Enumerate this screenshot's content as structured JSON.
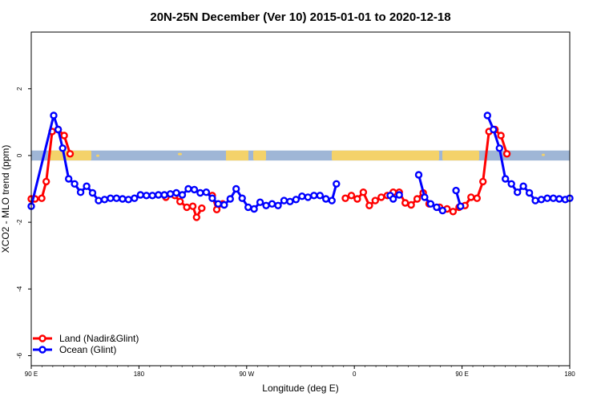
{
  "chart_data": {
    "type": "line",
    "title": "20N-25N December (Ver 10)   2015-01-01 to 2020-12-18",
    "xlabel": "Longitude (deg E)",
    "ylabel": "XCO2 - MLO trend (ppm)",
    "xlim": [
      90,
      450
    ],
    "ylim": [
      -6.3,
      3.7
    ],
    "x_ticks": [
      {
        "value": 90,
        "label": "90 E"
      },
      {
        "value": 162,
        "label": "180"
      },
      {
        "value": 234,
        "label": "90 W"
      },
      {
        "value": 306,
        "label": "0"
      },
      {
        "value": 378,
        "label": "90 E"
      },
      {
        "value": 450,
        "label": "180"
      }
    ],
    "y_ticks": [
      {
        "value": 2,
        "label": "2"
      },
      {
        "value": 0,
        "label": "0"
      },
      {
        "value": -2,
        "label": "-2"
      },
      {
        "value": -4,
        "label": "-4"
      },
      {
        "value": -6,
        "label": "-6"
      }
    ],
    "band": {
      "ymin": -0.15,
      "ymax": 0.15,
      "ocean_color": "#9fb6d6",
      "land_color": "#f4d26a"
    },
    "legend": {
      "placement": "bottom-left"
    },
    "series": [
      {
        "name": "Land (Nadir&Glint)",
        "color": "#ff0000",
        "segments": [
          [
            [
              90,
              -1.3
            ],
            [
              92.5,
              -1.3
            ],
            [
              97,
              -1.28
            ],
            [
              100,
              -0.78
            ],
            [
              104,
              0.72
            ],
            [
              108,
              0.78
            ],
            [
              112,
              0.6
            ],
            [
              116,
              0.05
            ]
          ],
          [
            [
              180,
              -1.25
            ],
            [
              186,
              -1.2
            ],
            [
              189.5,
              -1.38
            ],
            [
              194,
              -1.55
            ],
            [
              198,
              -1.52
            ],
            [
              200.5,
              -1.85
            ],
            [
              204,
              -1.58
            ]
          ],
          [
            [
              211,
              -1.2
            ],
            [
              214,
              -1.62
            ],
            [
              218,
              -1.45
            ]
          ],
          [
            [
              300,
              -1.28
            ],
            [
              304,
              -1.2
            ],
            [
              308,
              -1.3
            ],
            [
              312,
              -1.1
            ],
            [
              316,
              -1.5
            ],
            [
              320,
              -1.35
            ],
            [
              324,
              -1.25
            ],
            [
              328,
              -1.2
            ],
            [
              332,
              -1.1
            ],
            [
              336,
              -1.1
            ],
            [
              340,
              -1.42
            ],
            [
              344,
              -1.48
            ],
            [
              348,
              -1.3
            ],
            [
              352,
              -1.12
            ],
            [
              356,
              -1.45
            ]
          ],
          [
            [
              363,
              -1.55
            ],
            [
              368,
              -1.6
            ],
            [
              372,
              -1.68
            ],
            [
              376,
              -1.55
            ],
            [
              380,
              -1.5
            ],
            [
              384,
              -1.25
            ],
            [
              388,
              -1.28
            ],
            [
              392,
              -0.78
            ],
            [
              396,
              0.72
            ],
            [
              400,
              0.78
            ],
            [
              404,
              0.6
            ],
            [
              408,
              0.05
            ]
          ]
        ]
      },
      {
        "name": "Ocean (Glint)",
        "color": "#0000ff",
        "segments": [
          [
            [
              90,
              -1.52
            ],
            [
              105,
              1.2
            ],
            [
              108,
              0.78
            ],
            [
              111,
              0.22
            ],
            [
              115,
              -0.7
            ],
            [
              119,
              -0.85
            ],
            [
              123,
              -1.1
            ],
            [
              127,
              -0.92
            ],
            [
              131,
              -1.12
            ],
            [
              135,
              -1.35
            ],
            [
              139,
              -1.32
            ],
            [
              143,
              -1.28
            ],
            [
              147,
              -1.28
            ],
            [
              151,
              -1.3
            ],
            [
              155,
              -1.32
            ],
            [
              159,
              -1.28
            ],
            [
              163,
              -1.18
            ],
            [
              167,
              -1.2
            ],
            [
              171,
              -1.2
            ],
            [
              175,
              -1.18
            ],
            [
              179,
              -1.18
            ],
            [
              183,
              -1.15
            ],
            [
              187,
              -1.12
            ],
            [
              191,
              -1.18
            ],
            [
              195,
              -1.0
            ],
            [
              199,
              -1.02
            ],
            [
              203,
              -1.12
            ],
            [
              207,
              -1.1
            ],
            [
              211,
              -1.28
            ],
            [
              215,
              -1.45
            ],
            [
              219,
              -1.48
            ],
            [
              223,
              -1.3
            ],
            [
              227,
              -1.0
            ],
            [
              231,
              -1.28
            ],
            [
              235,
              -1.55
            ],
            [
              239,
              -1.6
            ],
            [
              243,
              -1.4
            ],
            [
              247,
              -1.5
            ],
            [
              251,
              -1.45
            ],
            [
              255,
              -1.5
            ],
            [
              259,
              -1.35
            ],
            [
              263,
              -1.38
            ],
            [
              267,
              -1.32
            ],
            [
              271,
              -1.22
            ],
            [
              275,
              -1.25
            ],
            [
              279,
              -1.2
            ],
            [
              283,
              -1.2
            ],
            [
              287,
              -1.3
            ],
            [
              291,
              -1.35
            ],
            [
              294,
              -0.85
            ]
          ],
          [
            [
              330,
              -1.2
            ],
            [
              332,
              -1.3
            ],
            [
              336,
              -1.18
            ]
          ],
          [
            [
              349,
              -0.58
            ],
            [
              353,
              -1.25
            ],
            [
              357,
              -1.45
            ],
            [
              361,
              -1.55
            ],
            [
              365,
              -1.65
            ]
          ],
          [
            [
              374,
              -1.05
            ],
            [
              377,
              -1.52
            ]
          ],
          [
            [
              395,
              1.2
            ],
            [
              399,
              0.78
            ],
            [
              403,
              0.22
            ],
            [
              407,
              -0.7
            ],
            [
              411,
              -0.85
            ],
            [
              415,
              -1.1
            ],
            [
              419,
              -0.92
            ],
            [
              423,
              -1.12
            ],
            [
              427,
              -1.35
            ],
            [
              431,
              -1.32
            ],
            [
              435,
              -1.28
            ],
            [
              439,
              -1.28
            ],
            [
              443,
              -1.3
            ],
            [
              447,
              -1.32
            ],
            [
              450,
              -1.28
            ]
          ]
        ]
      }
    ]
  }
}
